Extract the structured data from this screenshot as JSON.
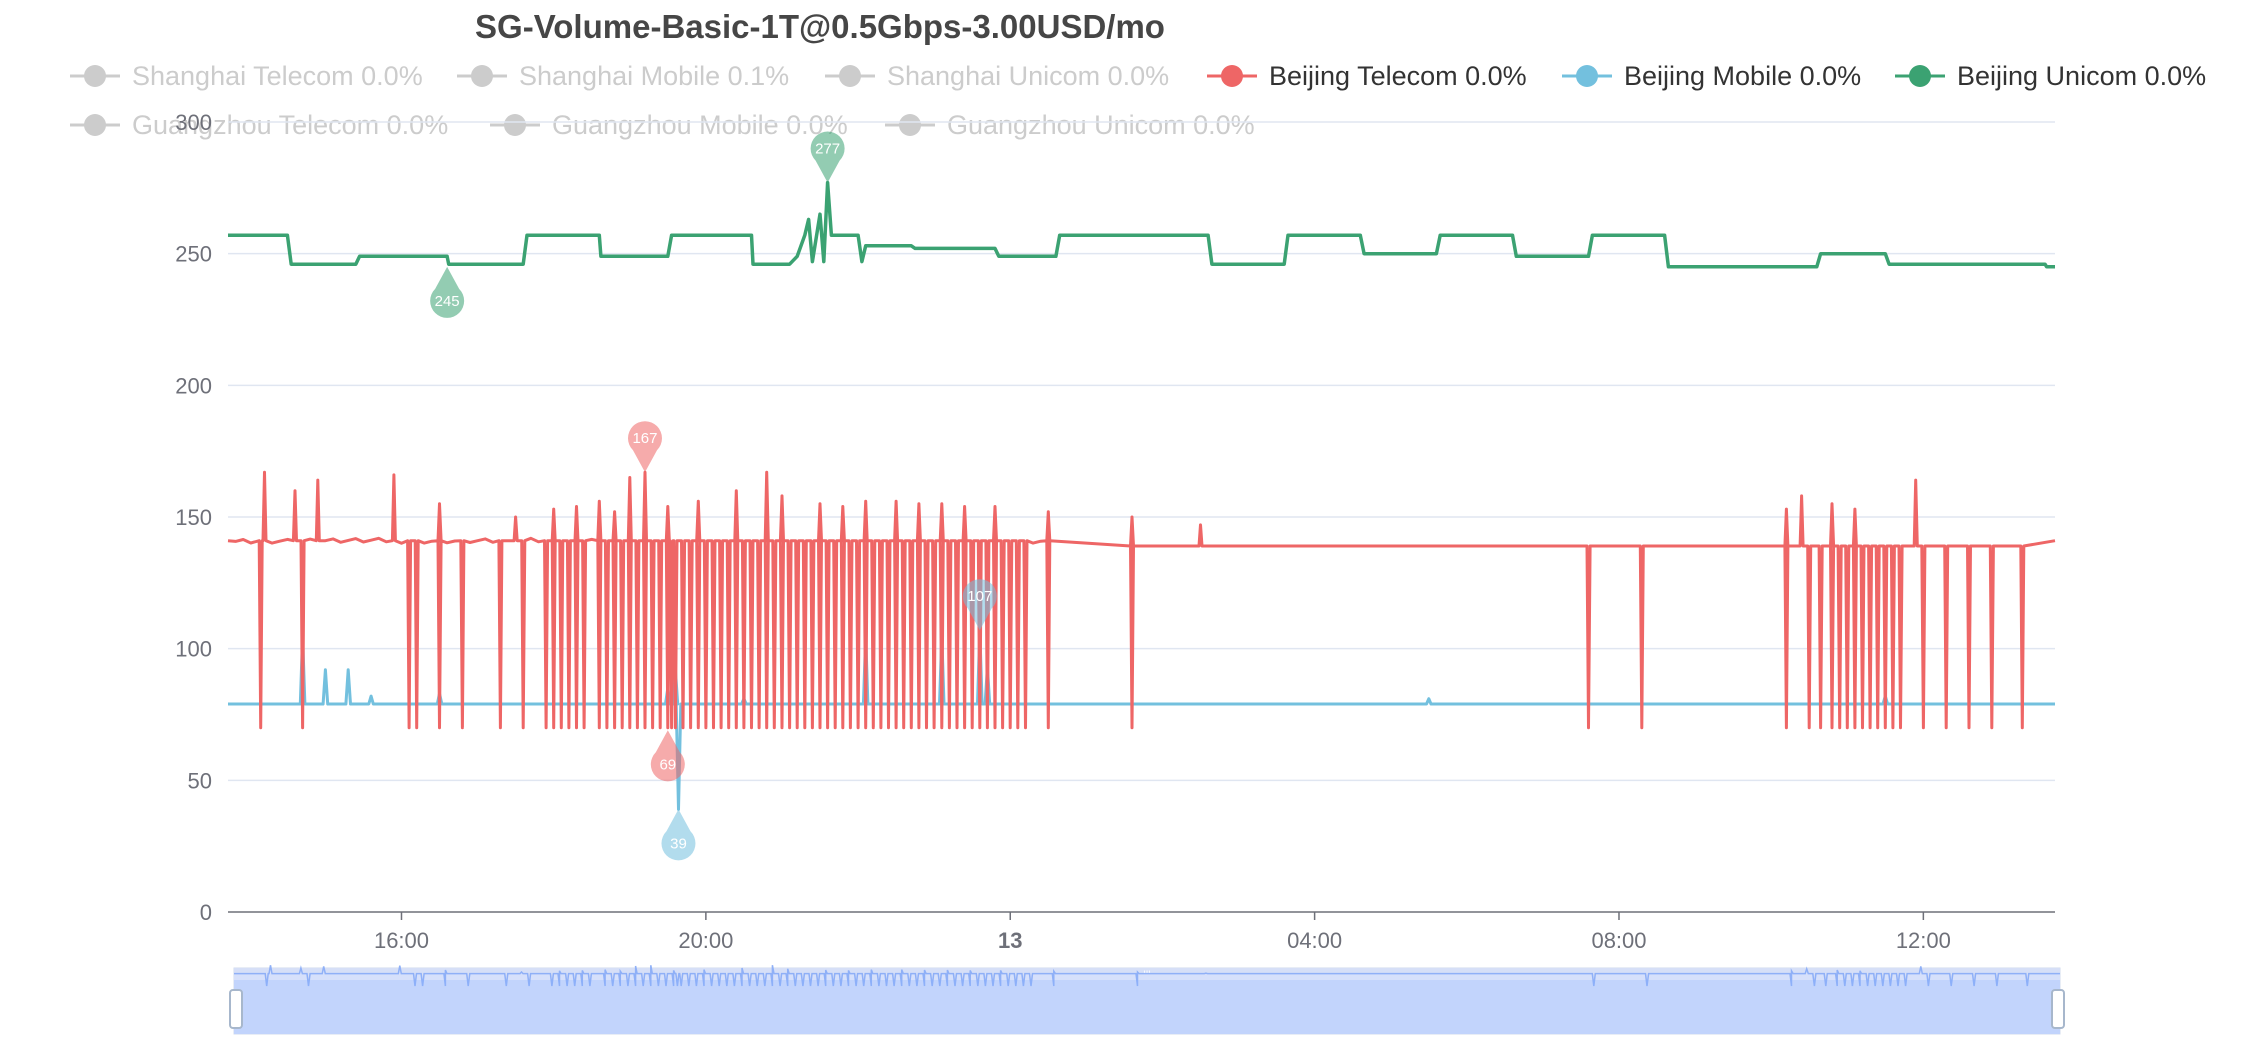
{
  "chart_data": {
    "type": "line",
    "title": "SG-Volume-Basic-1T@0.5Gbps-3.00USD/mo",
    "xlabel": "",
    "ylabel": "",
    "ylim": [
      0,
      300
    ],
    "y_ticks": [
      0,
      50,
      100,
      150,
      200,
      250,
      300
    ],
    "x_ticks": [
      "16:00",
      "20:00",
      "13",
      "04:00",
      "08:00",
      "12:00"
    ],
    "x_tick_bold": [
      false,
      false,
      true,
      false,
      false,
      false
    ],
    "x_tick_hours": [
      16,
      20,
      24,
      28,
      32,
      36
    ],
    "x_range_hours": [
      13.72,
      37.73
    ],
    "grid": true,
    "legend_position": "top",
    "legend": [
      {
        "name": "Shanghai Telecom 0.0%",
        "active": false,
        "color": "#cccccc"
      },
      {
        "name": "Shanghai Mobile 0.1%",
        "active": false,
        "color": "#cccccc"
      },
      {
        "name": "Shanghai Unicom 0.0%",
        "active": false,
        "color": "#cccccc"
      },
      {
        "name": "Beijing Telecom 0.0%",
        "active": true,
        "color": "#ee6666"
      },
      {
        "name": "Beijing Mobile 0.0%",
        "active": true,
        "color": "#73c0de"
      },
      {
        "name": "Beijing Unicom 0.0%",
        "active": true,
        "color": "#3ba272"
      },
      {
        "name": "Guangzhou Telecom 0.0%",
        "active": false,
        "color": "#cccccc"
      },
      {
        "name": "Guangzhou Mobile 0.0%",
        "active": false,
        "color": "#cccccc"
      },
      {
        "name": "Guangzhou Unicom 0.0%",
        "active": false,
        "color": "#cccccc"
      }
    ],
    "series": [
      {
        "name": "Beijing Unicom 0.0%",
        "color": "#3ba272",
        "points": [
          [
            13.72,
            257
          ],
          [
            14.5,
            257
          ],
          [
            14.55,
            246
          ],
          [
            15.4,
            246
          ],
          [
            15.45,
            249
          ],
          [
            16.6,
            249
          ],
          [
            16.62,
            246
          ],
          [
            17.6,
            246
          ],
          [
            17.65,
            257
          ],
          [
            18.6,
            257
          ],
          [
            18.62,
            249
          ],
          [
            19.5,
            249
          ],
          [
            19.55,
            257
          ],
          [
            20.6,
            257
          ],
          [
            20.62,
            246
          ],
          [
            21.1,
            246
          ],
          [
            21.2,
            249
          ],
          [
            21.3,
            257
          ],
          [
            21.35,
            263
          ],
          [
            21.4,
            247
          ],
          [
            21.5,
            265
          ],
          [
            21.55,
            247
          ],
          [
            21.6,
            277
          ],
          [
            21.65,
            257
          ],
          [
            22.0,
            257
          ],
          [
            22.05,
            247
          ],
          [
            22.1,
            253
          ],
          [
            22.7,
            253
          ],
          [
            22.75,
            252
          ],
          [
            23.8,
            252
          ],
          [
            23.85,
            249
          ],
          [
            24.6,
            249
          ],
          [
            24.65,
            257
          ],
          [
            26.6,
            257
          ],
          [
            26.65,
            246
          ],
          [
            27.6,
            246
          ],
          [
            27.65,
            257
          ],
          [
            28.6,
            257
          ],
          [
            28.65,
            250
          ],
          [
            29.6,
            250
          ],
          [
            29.65,
            257
          ],
          [
            30.6,
            257
          ],
          [
            30.65,
            249
          ],
          [
            31.6,
            249
          ],
          [
            31.65,
            257
          ],
          [
            32.6,
            257
          ],
          [
            32.65,
            245
          ],
          [
            34.6,
            245
          ],
          [
            34.65,
            250
          ],
          [
            35.5,
            250
          ],
          [
            35.55,
            246
          ],
          [
            37.6,
            246
          ],
          [
            37.62,
            245
          ],
          [
            37.73,
            245
          ]
        ]
      },
      {
        "name": "Beijing Mobile 0.0%",
        "color": "#73c0de",
        "baseline": 79,
        "spikes": [
          [
            14.7,
            105
          ],
          [
            15.0,
            92
          ],
          [
            15.3,
            92
          ],
          [
            15.6,
            82
          ],
          [
            16.5,
            83
          ],
          [
            19.5,
            85
          ],
          [
            19.6,
            92
          ],
          [
            19.64,
            39
          ],
          [
            20.5,
            81
          ],
          [
            22.1,
            105
          ],
          [
            23.1,
            105
          ],
          [
            23.6,
            107
          ],
          [
            23.7,
            93
          ],
          [
            29.5,
            81
          ],
          [
            35.5,
            82
          ]
        ]
      },
      {
        "name": "Beijing Telecom 0.0%",
        "color": "#ee6666",
        "baseline": 141,
        "drops": [
          14.15,
          14.7,
          16.1,
          16.2,
          16.5,
          16.8,
          17.3,
          17.6,
          17.9,
          18.0,
          18.1,
          18.2,
          18.3,
          18.4,
          18.6,
          18.7,
          18.8,
          18.9,
          19.0,
          19.1,
          19.2,
          19.3,
          19.4,
          19.5,
          19.55,
          19.6,
          19.7,
          19.8,
          19.9,
          20.0,
          20.1,
          20.2,
          20.3,
          20.4,
          20.5,
          20.6,
          20.7,
          20.8,
          20.9,
          21.0,
          21.1,
          21.2,
          21.3,
          21.4,
          21.5,
          21.6,
          21.7,
          21.8,
          21.9,
          22.0,
          22.1,
          22.2,
          22.3,
          22.4,
          22.5,
          22.6,
          22.7,
          22.8,
          22.9,
          23.0,
          23.1,
          23.2,
          23.3,
          23.4,
          23.5,
          23.6,
          23.7,
          23.8,
          23.9,
          24.0,
          24.1,
          24.2,
          24.5,
          25.6,
          31.6,
          32.3,
          34.2,
          34.5,
          34.65,
          34.8,
          34.9,
          35.0,
          35.1,
          35.2,
          35.3,
          35.4,
          35.5,
          35.6,
          35.7,
          36.0,
          36.3,
          36.6,
          36.9,
          37.3
        ],
        "peaks": [
          [
            14.2,
            167
          ],
          [
            14.6,
            160
          ],
          [
            14.9,
            164
          ],
          [
            15.9,
            166
          ],
          [
            16.5,
            155
          ],
          [
            17.5,
            150
          ],
          [
            18.0,
            153
          ],
          [
            18.3,
            154
          ],
          [
            18.6,
            156
          ],
          [
            18.8,
            152
          ],
          [
            19.0,
            165
          ],
          [
            19.2,
            167
          ],
          [
            19.5,
            154
          ],
          [
            19.9,
            156
          ],
          [
            20.4,
            160
          ],
          [
            20.8,
            167
          ],
          [
            21.0,
            158
          ],
          [
            21.5,
            155
          ],
          [
            21.8,
            154
          ],
          [
            22.1,
            156
          ],
          [
            22.5,
            156
          ],
          [
            22.8,
            155
          ],
          [
            23.1,
            155
          ],
          [
            23.4,
            154
          ],
          [
            23.8,
            154
          ],
          [
            24.5,
            152
          ],
          [
            25.6,
            150
          ],
          [
            26.5,
            147
          ],
          [
            34.2,
            153
          ],
          [
            34.4,
            158
          ],
          [
            34.8,
            155
          ],
          [
            35.1,
            153
          ],
          [
            35.9,
            164
          ]
        ],
        "other_high_period_end": 25.0,
        "baseline_after": 139,
        "floor": 70
      }
    ],
    "markers": [
      {
        "series": "Beijing Unicom 0.0%",
        "kind": "max",
        "x": 21.6,
        "y": 277,
        "label": "277"
      },
      {
        "series": "Beijing Unicom 0.0%",
        "kind": "min",
        "x": 16.6,
        "y": 245,
        "label": "245"
      },
      {
        "series": "Beijing Telecom 0.0%",
        "kind": "max",
        "x": 19.2,
        "y": 167,
        "label": "167"
      },
      {
        "series": "Beijing Telecom 0.0%",
        "kind": "min",
        "x": 19.5,
        "y": 69,
        "label": "69"
      },
      {
        "series": "Beijing Mobile 0.0%",
        "kind": "max",
        "x": 23.6,
        "y": 107,
        "label": "107"
      },
      {
        "series": "Beijing Mobile 0.0%",
        "kind": "min",
        "x": 19.64,
        "y": 39,
        "label": "39"
      }
    ],
    "data_zoom": {
      "start_percent": 0,
      "end_percent": 100
    }
  },
  "colors": {
    "axis": "#6e7079",
    "grid": "#e0e6f1",
    "title": "#464646",
    "legend_active_text": "#333333",
    "legend_inactive_text": "#cccccc",
    "zoom_fill": "#d6e0fb",
    "zoom_line": "#8fb0f7",
    "zoom_handle_border": "#a7b7cc"
  }
}
